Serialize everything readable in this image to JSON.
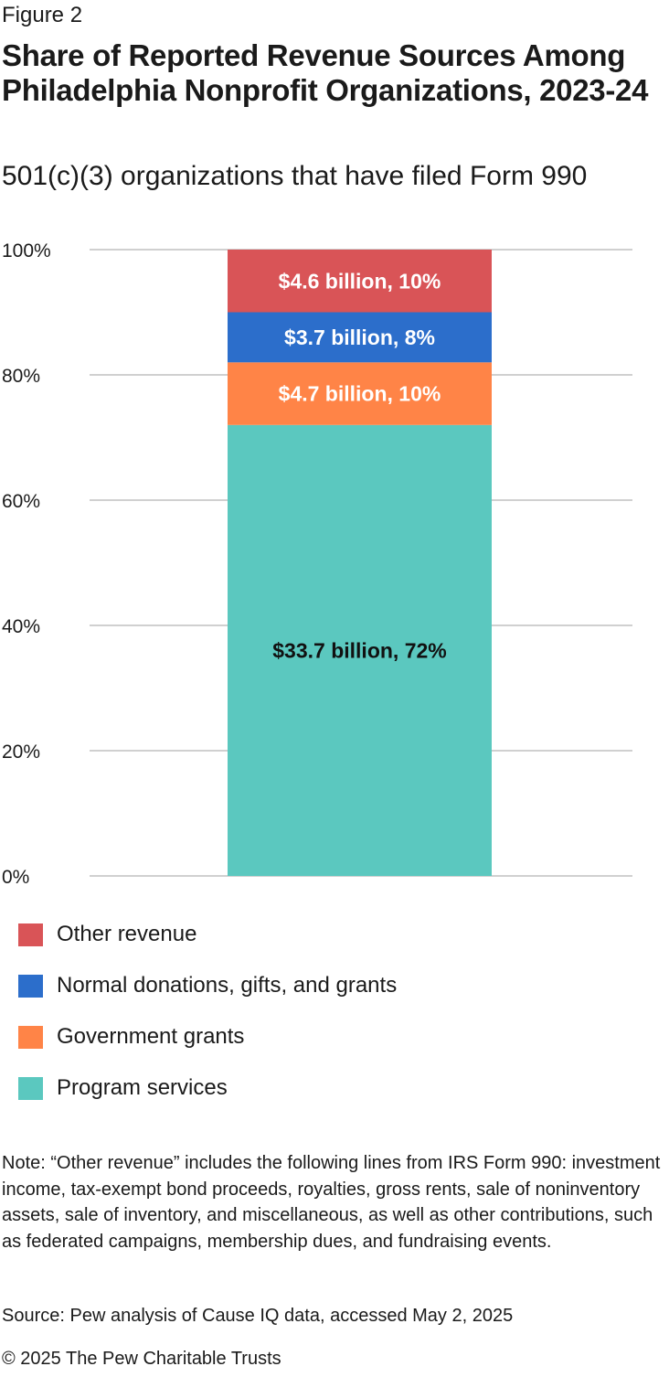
{
  "figure_label": "Figure 2",
  "title": "Share of Reported Revenue Sources Among Philadelphia Nonprofit Organizations, 2023-24",
  "subtitle": "501(c)(3) organizations that have filed Form 990",
  "chart_data": {
    "type": "bar",
    "stacked": true,
    "categories": [
      ""
    ],
    "ylim": [
      0,
      100
    ],
    "yticks": [
      "0%",
      "20%",
      "40%",
      "60%",
      "80%",
      "100%"
    ],
    "grid": true,
    "legend_position": "bottom-left",
    "series": [
      {
        "name": "Program services",
        "values": [
          72
        ],
        "label": "$33.7 billion, 72%",
        "color": "#5bc8bf",
        "label_color": "#111111"
      },
      {
        "name": "Government grants",
        "values": [
          10
        ],
        "label": "$4.7 billion, 10%",
        "color": "#ff8447",
        "label_color": "#ffffff"
      },
      {
        "name": "Normal donations, gifts, and grants",
        "values": [
          8
        ],
        "label": "$3.7 billion, 8%",
        "color": "#2c6ecb",
        "label_color": "#ffffff"
      },
      {
        "name": "Other revenue",
        "values": [
          10
        ],
        "label": "$4.6 billion, 10%",
        "color": "#d95457",
        "label_color": "#ffffff"
      }
    ]
  },
  "legend": [
    {
      "label": "Other revenue",
      "color": "#d95457"
    },
    {
      "label": "Normal donations, gifts, and grants",
      "color": "#2c6ecb"
    },
    {
      "label": "Government grants",
      "color": "#ff8447"
    },
    {
      "label": "Program services",
      "color": "#5bc8bf"
    }
  ],
  "note": "Note: “Other revenue” includes the following lines from IRS Form 990: investment income, tax-exempt bond proceeds, royalties, gross rents, sale of noninventory assets, sale of inventory, and miscellaneous, as well as other contributions, such as federated campaigns, membership dues, and fundraising events.",
  "source": "Source: Pew analysis of Cause IQ data, accessed May 2, 2025",
  "copyright": "© 2025 The Pew Charitable Trusts"
}
